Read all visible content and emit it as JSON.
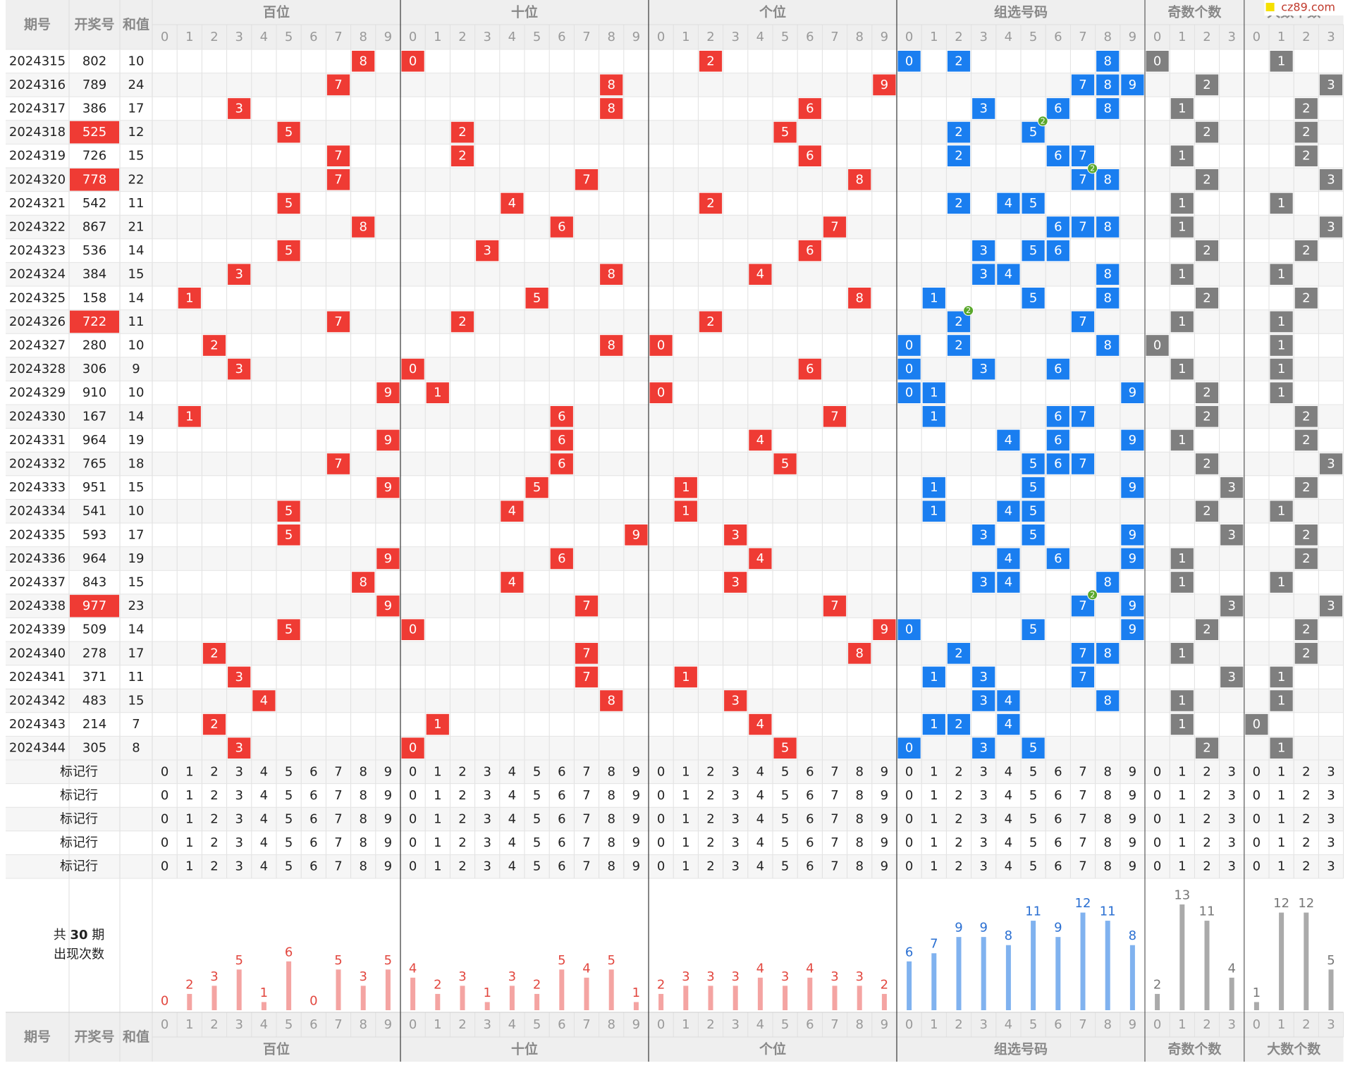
{
  "watermark": "cz89.com",
  "columns": [
    "期号",
    "开奖号",
    "和值"
  ],
  "sections": [
    {
      "name": "百位",
      "digits": [
        0,
        1,
        2,
        3,
        4,
        5,
        6,
        7,
        8,
        9
      ],
      "counts": [
        0,
        2,
        3,
        5,
        1,
        6,
        0,
        5,
        3,
        5
      ],
      "color": "#ef3b34",
      "bar_color": "#f4a4a2",
      "label_color": "#e2473f"
    },
    {
      "name": "十位",
      "digits": [
        0,
        1,
        2,
        3,
        4,
        5,
        6,
        7,
        8,
        9
      ],
      "counts": [
        4,
        2,
        3,
        1,
        3,
        2,
        5,
        4,
        5,
        1
      ],
      "color": "#ef3b34",
      "bar_color": "#f4a4a2",
      "label_color": "#e2473f"
    },
    {
      "name": "个位",
      "digits": [
        0,
        1,
        2,
        3,
        4,
        5,
        6,
        7,
        8,
        9
      ],
      "counts": [
        2,
        3,
        3,
        3,
        4,
        3,
        4,
        3,
        3,
        2
      ],
      "color": "#ef3b34",
      "bar_color": "#f4a4a2",
      "label_color": "#e2473f"
    },
    {
      "name": "组选号码",
      "digits": [
        0,
        1,
        2,
        3,
        4,
        5,
        6,
        7,
        8,
        9
      ],
      "counts": [
        6,
        7,
        9,
        9,
        8,
        11,
        9,
        12,
        11,
        8
      ],
      "color": "#1a7ef0",
      "bar_color": "#80b2ef",
      "label_color": "#2a6fd2"
    },
    {
      "name": "奇数个数",
      "digits": [
        0,
        1,
        2,
        3
      ],
      "counts": [
        2,
        13,
        11,
        4
      ],
      "color": "#7f7f7f",
      "bar_color": "#aaaaaa",
      "label_color": "#777777"
    },
    {
      "name": "大数个数",
      "digits": [
        0,
        1,
        2,
        3
      ],
      "counts": [
        1,
        12,
        12,
        5
      ],
      "color": "#7f7f7f",
      "bar_color": "#aaaaaa",
      "label_color": "#777777"
    }
  ],
  "rows": [
    {
      "issue": 2024315,
      "number": "802",
      "sum": 10,
      "picks": [
        8,
        0,
        2
      ],
      "group": [
        0,
        2,
        8
      ],
      "odd": 0,
      "big": 1
    },
    {
      "issue": 2024316,
      "number": "789",
      "sum": 24,
      "picks": [
        7,
        8,
        9
      ],
      "group": [
        7,
        8,
        9
      ],
      "odd": 2,
      "big": 3
    },
    {
      "issue": 2024317,
      "number": "386",
      "sum": 17,
      "picks": [
        3,
        8,
        6
      ],
      "group": [
        3,
        6,
        8
      ],
      "odd": 1,
      "big": 2
    },
    {
      "issue": 2024318,
      "number": "525",
      "sum": 12,
      "picks": [
        5,
        2,
        5
      ],
      "group": [
        2,
        5
      ],
      "repeat": {
        "digit": 5,
        "times": 2
      },
      "odd": 2,
      "big": 2
    },
    {
      "issue": 2024319,
      "number": "726",
      "sum": 15,
      "picks": [
        7,
        2,
        6
      ],
      "group": [
        2,
        6,
        7
      ],
      "odd": 1,
      "big": 2
    },
    {
      "issue": 2024320,
      "number": "778",
      "sum": 22,
      "picks": [
        7,
        7,
        8
      ],
      "group": [
        7,
        8
      ],
      "repeat": {
        "digit": 7,
        "times": 2
      },
      "odd": 2,
      "big": 3
    },
    {
      "issue": 2024321,
      "number": "542",
      "sum": 11,
      "picks": [
        5,
        4,
        2
      ],
      "group": [
        2,
        4,
        5
      ],
      "odd": 1,
      "big": 1
    },
    {
      "issue": 2024322,
      "number": "867",
      "sum": 21,
      "picks": [
        8,
        6,
        7
      ],
      "group": [
        6,
        7,
        8
      ],
      "odd": 1,
      "big": 3
    },
    {
      "issue": 2024323,
      "number": "536",
      "sum": 14,
      "picks": [
        5,
        3,
        6
      ],
      "group": [
        3,
        5,
        6
      ],
      "odd": 2,
      "big": 2
    },
    {
      "issue": 2024324,
      "number": "384",
      "sum": 15,
      "picks": [
        3,
        8,
        4
      ],
      "group": [
        3,
        4,
        8
      ],
      "odd": 1,
      "big": 1
    },
    {
      "issue": 2024325,
      "number": "158",
      "sum": 14,
      "picks": [
        1,
        5,
        8
      ],
      "group": [
        1,
        5,
        8
      ],
      "odd": 2,
      "big": 2
    },
    {
      "issue": 2024326,
      "number": "722",
      "sum": 11,
      "picks": [
        7,
        2,
        2
      ],
      "group": [
        2,
        7
      ],
      "repeat": {
        "digit": 2,
        "times": 2
      },
      "odd": 1,
      "big": 1
    },
    {
      "issue": 2024327,
      "number": "280",
      "sum": 10,
      "picks": [
        2,
        8,
        0
      ],
      "group": [
        0,
        2,
        8
      ],
      "odd": 0,
      "big": 1
    },
    {
      "issue": 2024328,
      "number": "306",
      "sum": 9,
      "picks": [
        3,
        0,
        6
      ],
      "group": [
        0,
        3,
        6
      ],
      "odd": 1,
      "big": 1
    },
    {
      "issue": 2024329,
      "number": "910",
      "sum": 10,
      "picks": [
        9,
        1,
        0
      ],
      "group": [
        0,
        1,
        9
      ],
      "odd": 2,
      "big": 1
    },
    {
      "issue": 2024330,
      "number": "167",
      "sum": 14,
      "picks": [
        1,
        6,
        7
      ],
      "group": [
        1,
        6,
        7
      ],
      "odd": 2,
      "big": 2
    },
    {
      "issue": 2024331,
      "number": "964",
      "sum": 19,
      "picks": [
        9,
        6,
        4
      ],
      "group": [
        4,
        6,
        9
      ],
      "odd": 1,
      "big": 2
    },
    {
      "issue": 2024332,
      "number": "765",
      "sum": 18,
      "picks": [
        7,
        6,
        5
      ],
      "group": [
        5,
        6,
        7
      ],
      "odd": 2,
      "big": 3
    },
    {
      "issue": 2024333,
      "number": "951",
      "sum": 15,
      "picks": [
        9,
        5,
        1
      ],
      "group": [
        1,
        5,
        9
      ],
      "odd": 3,
      "big": 2
    },
    {
      "issue": 2024334,
      "number": "541",
      "sum": 10,
      "picks": [
        5,
        4,
        1
      ],
      "group": [
        1,
        4,
        5
      ],
      "odd": 2,
      "big": 1
    },
    {
      "issue": 2024335,
      "number": "593",
      "sum": 17,
      "picks": [
        5,
        9,
        3
      ],
      "group": [
        3,
        5,
        9
      ],
      "odd": 3,
      "big": 2
    },
    {
      "issue": 2024336,
      "number": "964",
      "sum": 19,
      "picks": [
        9,
        6,
        4
      ],
      "group": [
        4,
        6,
        9
      ],
      "odd": 1,
      "big": 2
    },
    {
      "issue": 2024337,
      "number": "843",
      "sum": 15,
      "picks": [
        8,
        4,
        3
      ],
      "group": [
        3,
        4,
        8
      ],
      "odd": 1,
      "big": 1
    },
    {
      "issue": 2024338,
      "number": "977",
      "sum": 23,
      "picks": [
        9,
        7,
        7
      ],
      "group": [
        7,
        9
      ],
      "repeat": {
        "digit": 7,
        "times": 2
      },
      "odd": 3,
      "big": 3
    },
    {
      "issue": 2024339,
      "number": "509",
      "sum": 14,
      "picks": [
        5,
        0,
        9
      ],
      "group": [
        0,
        5,
        9
      ],
      "odd": 2,
      "big": 2
    },
    {
      "issue": 2024340,
      "number": "278",
      "sum": 17,
      "picks": [
        2,
        7,
        8
      ],
      "group": [
        2,
        7,
        8
      ],
      "odd": 1,
      "big": 2
    },
    {
      "issue": 2024341,
      "number": "371",
      "sum": 11,
      "picks": [
        3,
        7,
        1
      ],
      "group": [
        1,
        3,
        7
      ],
      "odd": 3,
      "big": 1
    },
    {
      "issue": 2024342,
      "number": "483",
      "sum": 15,
      "picks": [
        4,
        8,
        3
      ],
      "group": [
        3,
        4,
        8
      ],
      "odd": 1,
      "big": 1
    },
    {
      "issue": 2024343,
      "number": "214",
      "sum": 7,
      "picks": [
        2,
        1,
        4
      ],
      "group": [
        1,
        2,
        4
      ],
      "odd": 1,
      "big": 0
    },
    {
      "issue": 2024344,
      "number": "305",
      "sum": 8,
      "picks": [
        3,
        0,
        5
      ],
      "group": [
        0,
        3,
        5
      ],
      "odd": 2,
      "big": 1
    }
  ],
  "marker_rows": [
    "标记行",
    "标记行",
    "标记行",
    "标记行",
    "标记行"
  ],
  "summary": {
    "prefix": "共",
    "periods": 30,
    "suffix": "期",
    "label": "出现次数"
  }
}
